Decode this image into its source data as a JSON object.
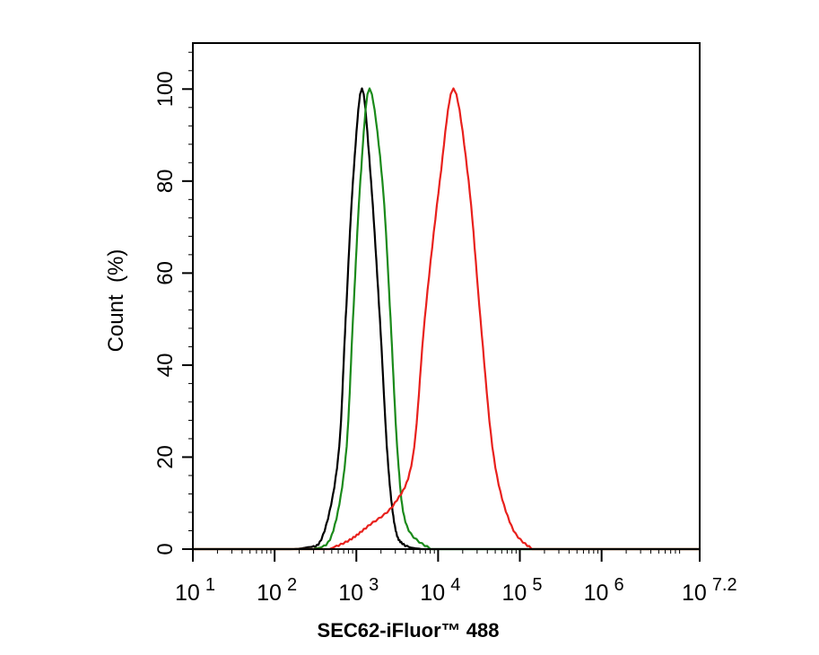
{
  "chart_data": {
    "type": "line",
    "title": "",
    "xlabel": "SEC62-iFluor™ 488",
    "ylabel": "Count  (%)",
    "xscale": "log",
    "xlim": [
      10,
      15848931.9
    ],
    "ylim": [
      0,
      110
    ],
    "grid": false,
    "legend": "none",
    "x_ticks": [
      {
        "base": "10",
        "exp": "1",
        "value": 10
      },
      {
        "base": "10",
        "exp": "2",
        "value": 100
      },
      {
        "base": "10",
        "exp": "3",
        "value": 1000
      },
      {
        "base": "10",
        "exp": "4",
        "value": 10000
      },
      {
        "base": "10",
        "exp": "5",
        "value": 100000
      },
      {
        "base": "10",
        "exp": "6",
        "value": 1000000
      },
      {
        "base": "10",
        "exp": "7.2",
        "value": 15848931.9
      }
    ],
    "y_ticks": [
      "0",
      "20",
      "40",
      "60",
      "80",
      "100"
    ],
    "series": [
      {
        "color": "#000000",
        "points": [
          [
            86,
            0
          ],
          [
            236,
            0.3
          ],
          [
            390,
            3
          ],
          [
            600,
            20
          ],
          [
            740,
            50
          ],
          [
            910,
            80
          ],
          [
            1170,
            100
          ],
          [
            1510,
            80
          ],
          [
            1940,
            50
          ],
          [
            2410,
            20
          ],
          [
            2960,
            5
          ],
          [
            3790,
            1
          ],
          [
            6300,
            0
          ]
        ]
      },
      {
        "color": "#1a8a1a",
        "points": [
          [
            300,
            0
          ],
          [
            500,
            3
          ],
          [
            740,
            20
          ],
          [
            910,
            50
          ],
          [
            1120,
            80
          ],
          [
            1450,
            100
          ],
          [
            2080,
            80
          ],
          [
            2620,
            50
          ],
          [
            3220,
            20
          ],
          [
            4150,
            5
          ],
          [
            8100,
            0
          ]
        ]
      },
      {
        "color": "#e8201c",
        "points": [
          [
            470,
            0
          ],
          [
            830,
            2
          ],
          [
            1390,
            5
          ],
          [
            2960,
            10
          ],
          [
            4900,
            20
          ],
          [
            6860,
            50
          ],
          [
            10500,
            80
          ],
          [
            15400,
            100
          ],
          [
            23600,
            80
          ],
          [
            33000,
            50
          ],
          [
            48000,
            20
          ],
          [
            79000,
            5
          ],
          [
            141000,
            0
          ]
        ]
      }
    ]
  }
}
